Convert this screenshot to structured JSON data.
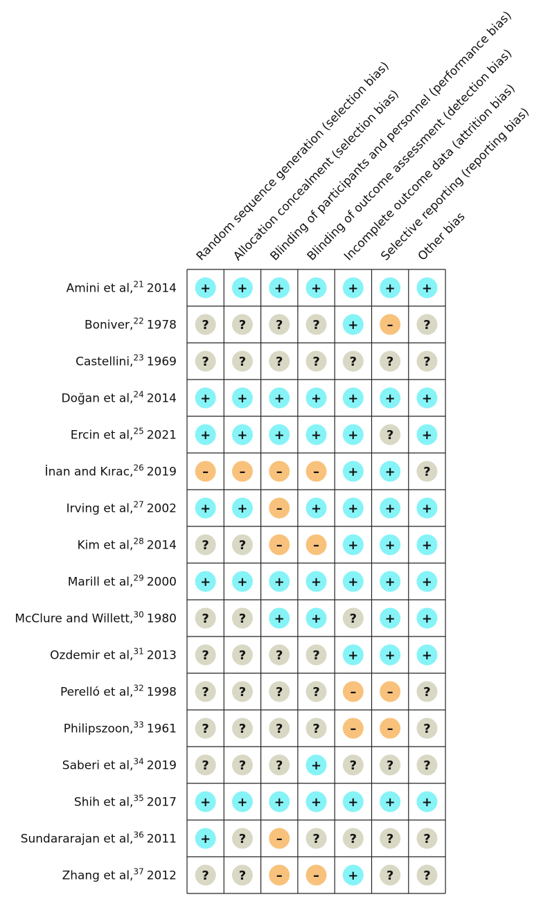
{
  "columns": [
    "Random sequence generation (selection bias)",
    "Allocation concealment (selection bias)",
    "Blinding of participants and personnel (performance bias)",
    "Blinding of outcome assessment (detection bias)",
    "Incomplete outcome data (attrition bias)",
    "Selective reporting (reporting bias)",
    "Other bias"
  ],
  "symbol_colors": {
    "+": "#86f3f7",
    "?": "#d9d8c4",
    "–": "#f8c27c"
  },
  "rows": [
    {
      "study": "Amini et al,",
      "ref": "21",
      "year": "2014",
      "ratings": [
        "+",
        "+",
        "+",
        "+",
        "+",
        "+",
        "+"
      ]
    },
    {
      "study": "Boniver,",
      "ref": "22",
      "year": "1978",
      "ratings": [
        "?",
        "?",
        "?",
        "?",
        "+",
        "–",
        "?"
      ]
    },
    {
      "study": "Castellini,",
      "ref": "23",
      "year": "1969",
      "ratings": [
        "?",
        "?",
        "?",
        "?",
        "?",
        "?",
        "?"
      ]
    },
    {
      "study": "Doğan et al,",
      "ref": "24",
      "year": "2014",
      "ratings": [
        "+",
        "+",
        "+",
        "+",
        "+",
        "+",
        "+"
      ]
    },
    {
      "study": "Ercin et al,",
      "ref": "25",
      "year": "2021",
      "ratings": [
        "+",
        "+",
        "+",
        "+",
        "+",
        "?",
        "+"
      ]
    },
    {
      "study": "İnan and Kırac,",
      "ref": "26",
      "year": "2019",
      "ratings": [
        "–",
        "–",
        "–",
        "–",
        "+",
        "+",
        "?"
      ]
    },
    {
      "study": "Irving et al,",
      "ref": "27",
      "year": "2002",
      "ratings": [
        "+",
        "+",
        "–",
        "+",
        "+",
        "+",
        "+"
      ]
    },
    {
      "study": "Kim et al,",
      "ref": "28",
      "year": "2014",
      "ratings": [
        "?",
        "?",
        "–",
        "–",
        "+",
        "+",
        "+"
      ]
    },
    {
      "study": "Marill et al,",
      "ref": "29",
      "year": "2000",
      "ratings": [
        "+",
        "+",
        "+",
        "+",
        "+",
        "+",
        "+"
      ]
    },
    {
      "study": "McClure and Willett,",
      "ref": "30",
      "year": "1980",
      "ratings": [
        "?",
        "?",
        "+",
        "+",
        "?",
        "+",
        "+"
      ]
    },
    {
      "study": "Ozdemir et al,",
      "ref": "31",
      "year": "2013",
      "ratings": [
        "?",
        "?",
        "?",
        "?",
        "+",
        "+",
        "+"
      ]
    },
    {
      "study": "Perelló et al,",
      "ref": "32",
      "year": "1998",
      "ratings": [
        "?",
        "?",
        "?",
        "?",
        "–",
        "–",
        "?"
      ]
    },
    {
      "study": "Philipszoon,",
      "ref": "33",
      "year": "1961",
      "ratings": [
        "?",
        "?",
        "?",
        "?",
        "–",
        "–",
        "?"
      ]
    },
    {
      "study": "Saberi et al,",
      "ref": "34",
      "year": "2019",
      "ratings": [
        "?",
        "?",
        "?",
        "+",
        "?",
        "?",
        "?"
      ]
    },
    {
      "study": "Shih et al,",
      "ref": "35",
      "year": "2017",
      "ratings": [
        "+",
        "+",
        "+",
        "+",
        "+",
        "+",
        "+"
      ]
    },
    {
      "study": "Sundararajan et al,",
      "ref": "36",
      "year": "2011",
      "ratings": [
        "+",
        "?",
        "–",
        "?",
        "?",
        "?",
        "?"
      ]
    },
    {
      "study": "Zhang et al,",
      "ref": "37",
      "year": "2012",
      "ratings": [
        "?",
        "?",
        "–",
        "–",
        "+",
        "?",
        "?"
      ]
    }
  ]
}
